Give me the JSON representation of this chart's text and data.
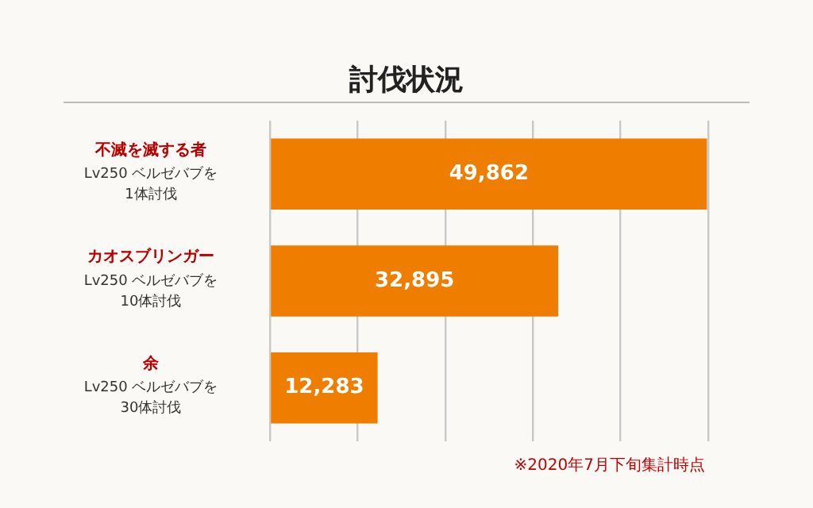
{
  "chart_data": {
    "type": "bar",
    "orientation": "horizontal",
    "title": "討伐状況",
    "categories": [
      "不滅を滅する者\nLv250 ベルゼバブを\n1体討伐",
      "カオスブリンガー\nLv250 ベルゼバブを\n10体討伐",
      "余\nLv250 ベルゼバブを\n30体討伐"
    ],
    "values": [
      49862,
      32895,
      12283
    ],
    "value_labels": [
      "49,862",
      "32,895",
      "12,283"
    ],
    "color": "#ee7d00",
    "grid": "x",
    "tick_labels": "y",
    "annotations": [
      "※2020年7月下旬集計時点"
    ]
  }
}
